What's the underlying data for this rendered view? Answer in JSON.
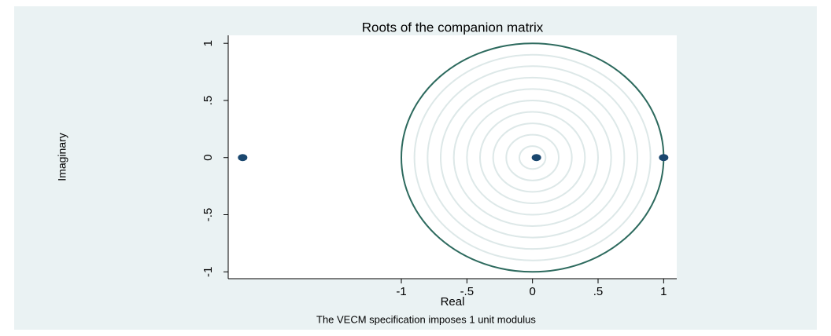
{
  "chart_data": {
    "type": "scatter",
    "title": "Roots of the companion matrix",
    "xlabel": "Real",
    "ylabel": "Imaginary",
    "note": "The VECM specification imposes 1 unit modulus",
    "series": [
      {
        "name": "Roots",
        "color": "#1a476f",
        "x": [
          -2.21,
          0.03,
          1
        ],
        "values": [
          0,
          0,
          0
        ]
      }
    ],
    "unit_circle": {
      "radius": 1,
      "color": "#2d6a5e"
    },
    "xlim": [
      -2.32,
      1.1
    ],
    "ylim": [
      -1.06,
      1.07
    ],
    "xticks": [
      -1,
      {
        "value": -0.5,
        "label": "-.5"
      },
      0,
      {
        "value": 0.5,
        "label": ".5"
      },
      1
    ],
    "yticks": [
      -1,
      {
        "value": -0.5,
        "label": "-.5"
      },
      0,
      {
        "value": 0.5,
        "label": ".5"
      },
      1
    ]
  }
}
